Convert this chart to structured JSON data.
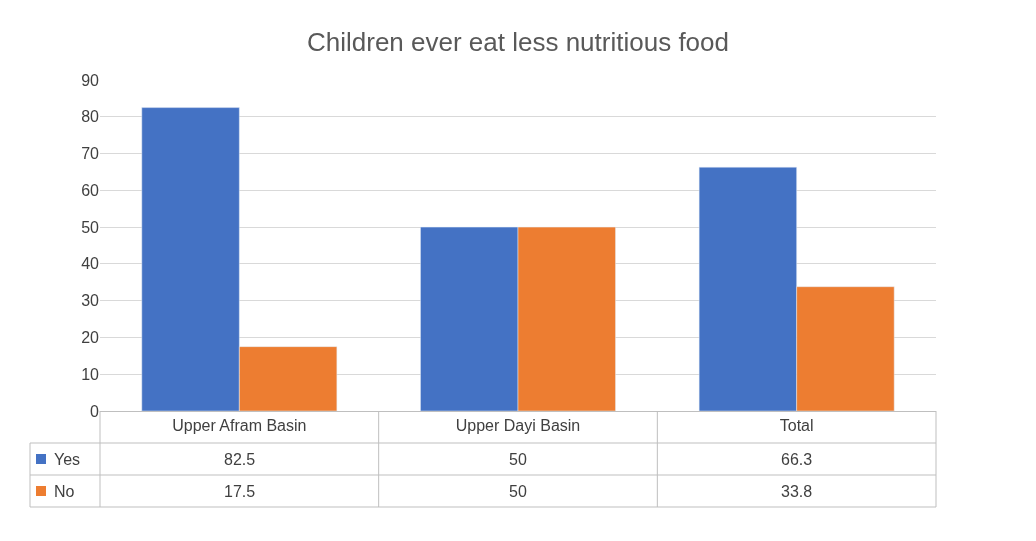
{
  "chart_data": {
    "type": "bar",
    "title": "Children ever eat less nutritious food",
    "categories": [
      "Upper Afram Basin",
      "Upper Dayi Basin",
      "Total"
    ],
    "series": [
      {
        "name": "Yes",
        "color": "#4472c4",
        "values": [
          82.5,
          50,
          66.3
        ]
      },
      {
        "name": "No",
        "color": "#ed7d31",
        "values": [
          17.5,
          50,
          33.8
        ]
      }
    ],
    "ylim": [
      0,
      90
    ],
    "yticks": [
      0,
      10,
      20,
      30,
      40,
      50,
      60,
      70,
      80,
      90
    ],
    "grid": "y",
    "data_labels": true,
    "legend": "bottom"
  }
}
